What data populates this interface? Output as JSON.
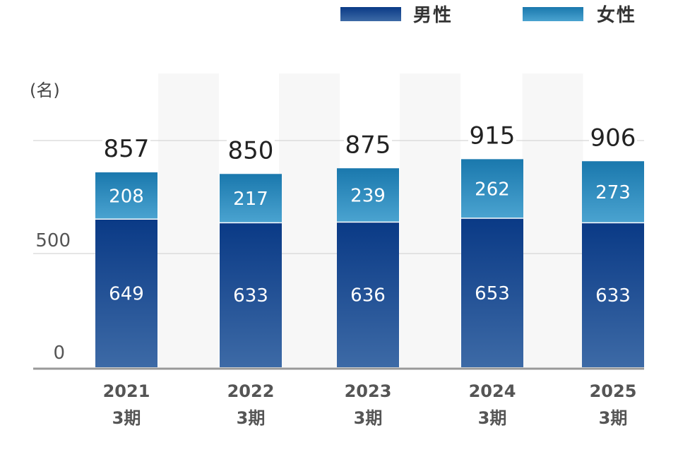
{
  "chart_data": {
    "type": "bar",
    "stacked": true,
    "unit": "(名)",
    "categories": [
      [
        "2021",
        "3期"
      ],
      [
        "2022",
        "3期"
      ],
      [
        "2023",
        "3期"
      ],
      [
        "2024",
        "3期"
      ],
      [
        "2025",
        "3期"
      ]
    ],
    "series": [
      {
        "name": "男性",
        "values": [
          649,
          633,
          636,
          653,
          633
        ],
        "color_top": "#0a3a86",
        "color_bottom": "#3d6aa6"
      },
      {
        "name": "女性",
        "values": [
          208,
          217,
          239,
          262,
          273
        ],
        "color_top": "#1a78ad",
        "color_bottom": "#4aa3d0"
      }
    ],
    "totals": [
      857,
      850,
      875,
      915,
      906
    ],
    "y_ticks": [
      0,
      500
    ],
    "ylim": [
      0,
      1000
    ],
    "grid": true,
    "legend_position": "top-right",
    "column_shading": "#f7f7f7"
  }
}
